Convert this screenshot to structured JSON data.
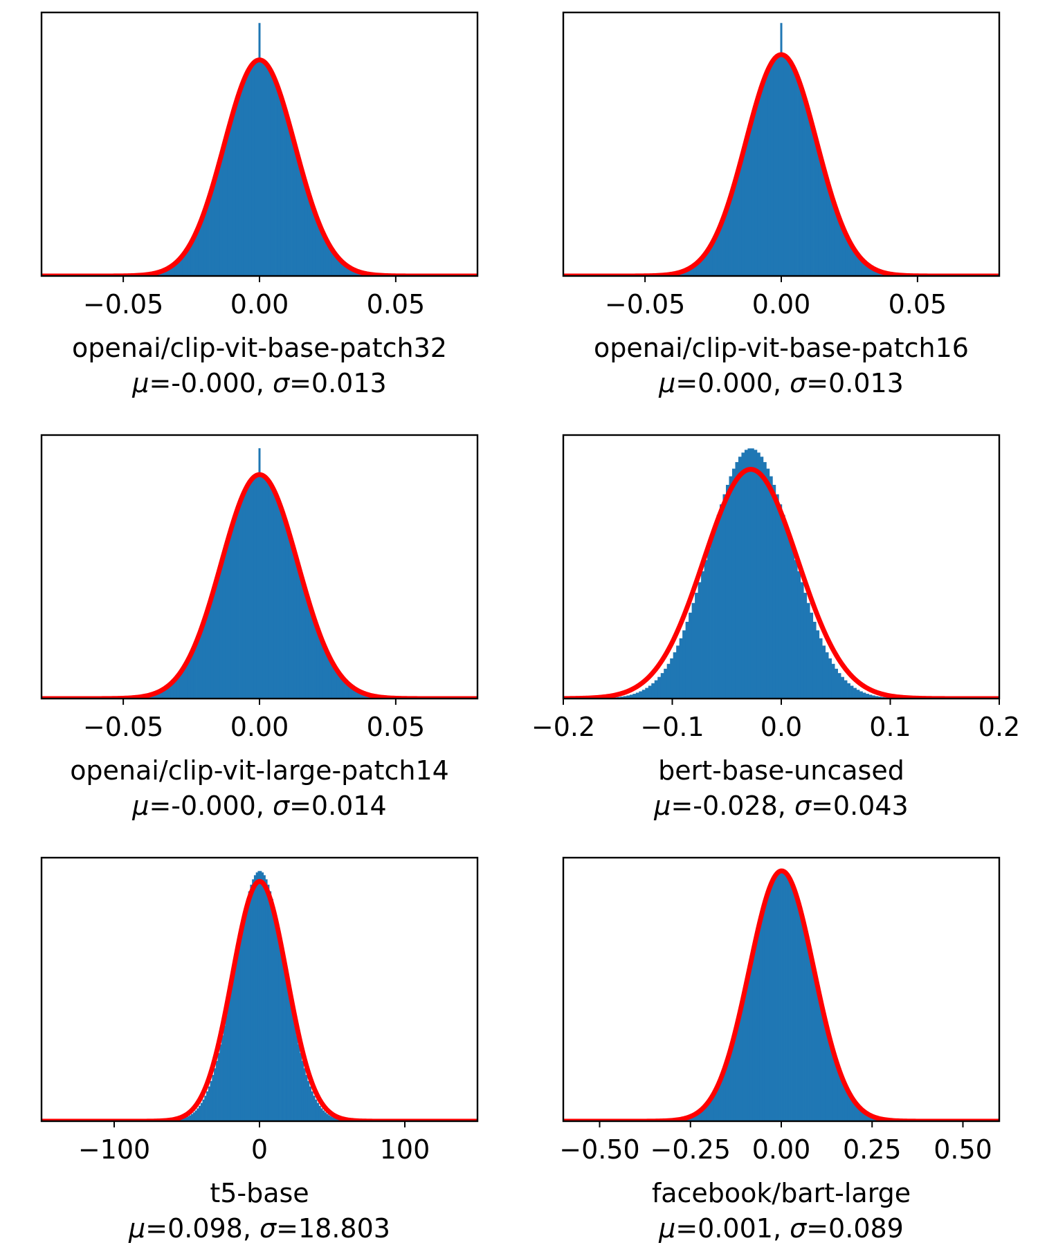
{
  "colors": {
    "bars": "#1f77b4",
    "fit_curve": "#ff0000",
    "frame": "#000000"
  },
  "chart_data": [
    {
      "type": "bar",
      "title": "openai/clip-vit-base-patch32",
      "stats": {
        "mu_label": "μ",
        "mu": "-0.000",
        "sigma_label": "σ",
        "sigma": "0.013"
      },
      "xlim": [
        -0.08,
        0.08
      ],
      "xticks": [
        -0.05,
        0.0,
        0.05
      ],
      "xtick_labels": [
        "−0.05",
        "0.00",
        "0.05"
      ],
      "yticks_visible": false,
      "distribution": {
        "mean": 0.0,
        "std": 0.013,
        "peak_fraction": 0.82,
        "hist_peak_fraction": 0.82,
        "spike": {
          "x": 0.0,
          "height_fraction": 0.96
        }
      }
    },
    {
      "type": "bar",
      "title": "openai/clip-vit-base-patch16",
      "stats": {
        "mu_label": "μ",
        "mu": "0.000",
        "sigma_label": "σ",
        "sigma": "0.013"
      },
      "xlim": [
        -0.08,
        0.08
      ],
      "xticks": [
        -0.05,
        0.0,
        0.05
      ],
      "xtick_labels": [
        "−0.05",
        "0.00",
        "0.05"
      ],
      "yticks_visible": false,
      "distribution": {
        "mean": 0.0,
        "std": 0.013,
        "peak_fraction": 0.84,
        "hist_peak_fraction": 0.84,
        "spike": {
          "x": 0.0,
          "height_fraction": 0.96
        }
      }
    },
    {
      "type": "bar",
      "title": "openai/clip-vit-large-patch14",
      "stats": {
        "mu_label": "μ",
        "mu": "-0.000",
        "sigma_label": "σ",
        "sigma": "0.014"
      },
      "xlim": [
        -0.08,
        0.08
      ],
      "xticks": [
        -0.05,
        0.0,
        0.05
      ],
      "xtick_labels": [
        "−0.05",
        "0.00",
        "0.05"
      ],
      "yticks_visible": false,
      "distribution": {
        "mean": 0.0,
        "std": 0.014,
        "peak_fraction": 0.85,
        "hist_peak_fraction": 0.85,
        "spike": {
          "x": 0.0,
          "height_fraction": 0.95
        }
      }
    },
    {
      "type": "bar",
      "title": "bert-base-uncased",
      "stats": {
        "mu_label": "μ",
        "mu": "-0.028",
        "sigma_label": "σ",
        "sigma": "0.043"
      },
      "xlim": [
        -0.2,
        0.2
      ],
      "xticks": [
        -0.2,
        -0.1,
        0.0,
        0.1,
        0.2
      ],
      "xtick_labels": [
        "−0.2",
        "−0.1",
        "0.0",
        "0.1",
        "0.2"
      ],
      "yticks_visible": false,
      "distribution": {
        "mean": -0.028,
        "std": 0.043,
        "peak_fraction": 0.87,
        "hist_peak_fraction": 0.95,
        "hist_std": 0.038,
        "spike": null
      }
    },
    {
      "type": "bar",
      "title": "t5-base",
      "stats": {
        "mu_label": "μ",
        "mu": "0.098",
        "sigma_label": "σ",
        "sigma": "18.803"
      },
      "xlim": [
        -150,
        150
      ],
      "xticks": [
        -100,
        0,
        100
      ],
      "xtick_labels": [
        "−100",
        "0",
        "100"
      ],
      "yticks_visible": false,
      "distribution": {
        "mean": 0.098,
        "std": 18.803,
        "peak_fraction": 0.91,
        "hist_peak_fraction": 0.95,
        "hist_std": 17.5,
        "spike": null
      }
    },
    {
      "type": "bar",
      "title": "facebook/bart-large",
      "stats": {
        "mu_label": "μ",
        "mu": "0.001",
        "sigma_label": "σ",
        "sigma": "0.089"
      },
      "xlim": [
        -0.6,
        0.6
      ],
      "xticks": [
        -0.5,
        -0.25,
        0.0,
        0.25,
        0.5
      ],
      "xtick_labels": [
        "−0.50",
        "−0.25",
        "0.00",
        "0.25",
        "0.50"
      ],
      "yticks_visible": false,
      "distribution": {
        "mean": 0.001,
        "std": 0.089,
        "peak_fraction": 0.95,
        "hist_peak_fraction": 0.95,
        "spike": null
      }
    }
  ]
}
